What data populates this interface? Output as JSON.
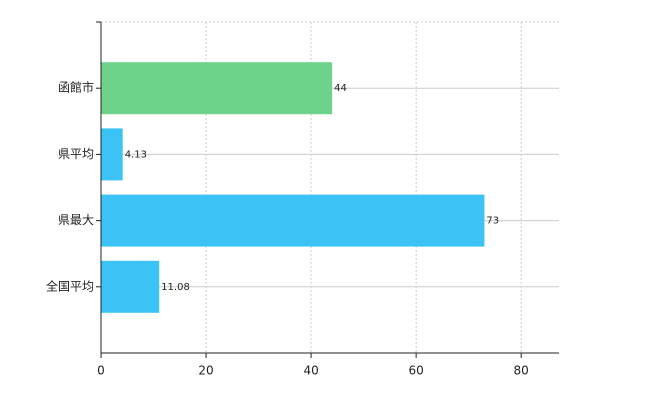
{
  "chart_data": {
    "type": "hbar",
    "categories": [
      "函館市",
      "県平均",
      "県最大",
      "全国平均"
    ],
    "values": [
      44,
      4.13,
      73,
      11.08
    ],
    "colors": [
      "#6dd28a",
      "#3cc3f5",
      "#3cc3f5",
      "#3cc3f5"
    ],
    "xlim": [
      0,
      87.2
    ],
    "xticks": [
      0,
      20,
      40,
      60,
      80
    ],
    "grid": true
  }
}
